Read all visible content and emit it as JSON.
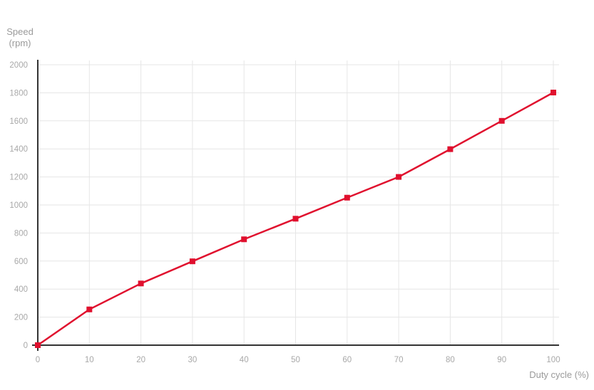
{
  "chart_data": {
    "type": "line",
    "x": [
      0,
      10,
      20,
      30,
      40,
      50,
      60,
      70,
      80,
      90,
      100
    ],
    "series": [
      {
        "values": [
          0,
          255,
          440,
          598,
          755,
          902,
          1052,
          1200,
          1398,
          1600,
          1802
        ]
      }
    ],
    "ylabel_line1": "Speed",
    "ylabel_line2": "(rpm)",
    "xlabel": "Duty cycle (%)",
    "xlim": [
      0,
      100
    ],
    "ylim": [
      0,
      2000
    ],
    "xticks": [
      0,
      10,
      20,
      30,
      40,
      50,
      60,
      70,
      80,
      90,
      100
    ],
    "yticks": [
      0,
      200,
      400,
      600,
      800,
      1000,
      1200,
      1400,
      1600,
      1800,
      2000
    ],
    "grid": true,
    "line_color": "#e0102e",
    "grid_color": "#e6e6e6",
    "axis_color": "#333333"
  }
}
